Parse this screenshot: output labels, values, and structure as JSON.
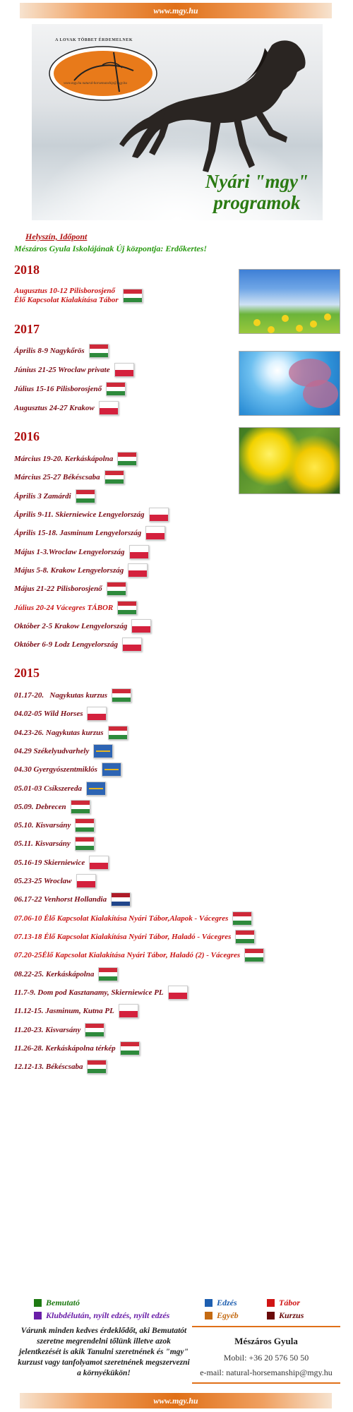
{
  "site": "www.mgy.hu",
  "hero": {
    "logo_text": "A LOVAK TÖBBET ÉRDEMELNEK",
    "logo_url": "www.mgy.hu natural-horsemanship@mgy.hu",
    "title_line1": "Nyári \"mgy\"",
    "title_line2": "programok"
  },
  "location_label": "Helyszín, Időpont",
  "center_label": "Mészáros Gyula Iskolájának Új központja: Erdőkertes!",
  "years": [
    {
      "label": "2018",
      "events": [
        {
          "text": "Augusztus 10-12 Pilisborosjenő",
          "text2": "Élő Kapcsolat Kialakítása Tábor",
          "flag": "hu",
          "style": "red"
        }
      ]
    },
    {
      "label": "2017",
      "events": [
        {
          "text": "Április 8-9 Nagykőrös",
          "flag": "hu",
          "style": "normal"
        },
        {
          "text": "Június 21-25 Wroclaw private",
          "flag": "pl",
          "style": "normal"
        },
        {
          "text": "Július 15-16 Pilisborosjenő",
          "flag": "hu",
          "style": "normal"
        },
        {
          "text": "Augusztus 24-27 Krakow",
          "flag": "pl",
          "style": "normal"
        }
      ]
    },
    {
      "label": "2016",
      "events": [
        {
          "text": "Március 19-20. Kerkáskápolna",
          "flag": "hu",
          "style": "normal"
        },
        {
          "text": "Március 25-27 Békéscsaba",
          "flag": "hu",
          "style": "normal"
        },
        {
          "text": "Április 3 Zamárdi",
          "flag": "hu",
          "style": "normal"
        },
        {
          "text": "Április 9-11. Skierniewice Lengyelország",
          "flag": "pl",
          "style": "normal"
        },
        {
          "text": "Április 15-18. Jasminum Lengyelország",
          "flag": "pl",
          "style": "normal"
        },
        {
          "text": "Május 1-3.Wroclaw Lengyelország",
          "flag": "pl",
          "style": "normal"
        },
        {
          "text": "Május 5-8. Krakow Lengyelország",
          "flag": "pl",
          "style": "normal"
        },
        {
          "text": "Május 21-22 Pilisborosjenő",
          "flag": "hu",
          "style": "normal"
        },
        {
          "text": "Július 20-24 Vácegres TÁBOR",
          "flag": "hu",
          "style": "red"
        },
        {
          "text": "Október 2-5 Krakow Lengyelország",
          "flag": "pl",
          "style": "normal"
        },
        {
          "text": "Október 6-9 Lodz Lengyelország",
          "flag": "pl",
          "style": "normal"
        }
      ]
    },
    {
      "label": "2015",
      "events": [
        {
          "text": "01.17-20.   Nagykutas kurzus",
          "flag": "hu",
          "style": "normal"
        },
        {
          "text": "04.02-05 Wild Horses",
          "flag": "pl",
          "style": "normal"
        },
        {
          "text": "04.23-26. Nagykutas kurzus",
          "flag": "hu",
          "style": "normal"
        },
        {
          "text": "04.29 Székelyudvarhely",
          "flag": "sz",
          "style": "normal"
        },
        {
          "text": "04.30 Gyergyószentmiklós",
          "flag": "sz",
          "style": "normal"
        },
        {
          "text": "05.01-03 Csíkszereda",
          "flag": "sz",
          "style": "normal"
        },
        {
          "text": "05.09. Debrecen",
          "flag": "hu",
          "style": "normal"
        },
        {
          "text": "05.10. Kisvarsány",
          "flag": "hu",
          "style": "normal"
        },
        {
          "text": "05.11. Kisvarsány",
          "flag": "hu",
          "style": "normal"
        },
        {
          "text": "05.16-19 Skierniewice",
          "flag": "pl",
          "style": "normal"
        },
        {
          "text": "05.23-25 Wroclaw",
          "flag": "pl",
          "style": "normal"
        },
        {
          "text": "06.17-22 Venhorst Hollandia",
          "flag": "nl",
          "style": "normal"
        },
        {
          "text": "07.06-10 Élő Kapcsolat Kialakítása Nyári Tábor,Alapok - Vácegres",
          "flag": "hu",
          "style": "red"
        },
        {
          "text": "07.13-18 Élő Kapcsolat Kialakítása Nyári Tábor, Haladó - Vácegres",
          "flag": "hu",
          "style": "red"
        },
        {
          "text": "07.20-25Élő Kapcsolat Kialakítása Nyári Tábor, Haladó (2) - Vácegres",
          "flag": "hu",
          "style": "red"
        },
        {
          "text": "08.22-25. Kerkáskápolna",
          "flag": "hu",
          "style": "normal"
        },
        {
          "text": "11.7-9. Dom pod Kasztanamy, Skierniewice PL",
          "flag": "pl",
          "style": "normal"
        },
        {
          "text": "11.12-15. Jasminum, Kutna PL",
          "flag": "pl",
          "style": "normal"
        },
        {
          "text": "11.20-23. Kisvarsány",
          "flag": "hu",
          "style": "normal"
        },
        {
          "text": "11.26-28. Kerkáskápolna térkép",
          "flag": "hu",
          "style": "normal"
        },
        {
          "text": "12.12-13. Békéscsaba",
          "flag": "hu",
          "style": "normal"
        }
      ]
    }
  ],
  "legend": [
    {
      "label": "Bemutató",
      "color": "#1e7a12"
    },
    {
      "label": "Edzés",
      "color": "#1e5fb0"
    },
    {
      "label": "Tábor",
      "color": "#d01414"
    },
    {
      "label": "Klubdélután, nyílt edzés, nyílt edzés",
      "color": "#6a1ea8"
    },
    {
      "label": "Egyéb",
      "color": "#c46a12"
    },
    {
      "label": "Kurzus",
      "color": "#6a0a0a"
    }
  ],
  "welcome": "Várunk minden kedves érdeklődőt, aki Bemutatót szeretne megrendelni tőlünk illetve azok jelentkezését is akik Tanulni szeretnének és \"mgy\" kurzust vagy tanfolyamot szeretnének megszervezni a környékükön!",
  "contact": {
    "name": "Mészáros Gyula",
    "mobile": "Mobil: +36 20 576 50 50",
    "email": "e-mail: natural-horsemanship@mgy.hu"
  }
}
